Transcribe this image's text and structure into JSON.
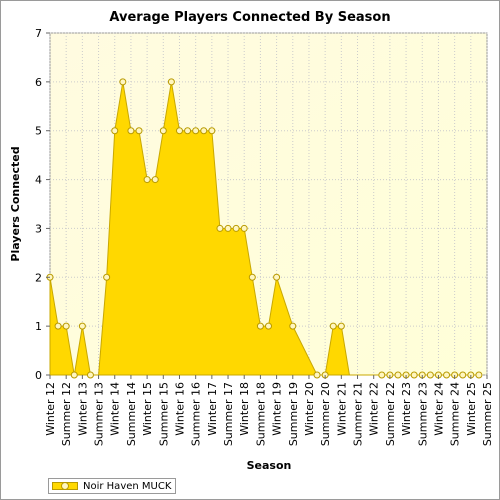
{
  "chart_data": {
    "type": "area",
    "title": "Average Players Connected By Season",
    "xlabel": "Season",
    "ylabel": "Players Connected",
    "ylim": [
      0,
      7
    ],
    "yticks": [
      0,
      1,
      2,
      3,
      4,
      5,
      6,
      7
    ],
    "grid": true,
    "legend_position": "bottom-left",
    "tick_labels": [
      "Winter 12",
      "Summer 12",
      "Winter 13",
      "Summer 13",
      "Winter 14",
      "Summer 14",
      "Winter 15",
      "Summer 15",
      "Winter 16",
      "Summer 16",
      "Winter 17",
      "Summer 17",
      "Winter 18",
      "Summer 18",
      "Winter 19",
      "Summer 19",
      "Winter 20",
      "Summer 20",
      "Winter 21",
      "Summer 21",
      "Winter 22",
      "Summer 22",
      "Winter 23",
      "Summer 23",
      "Winter 24",
      "Summer 24",
      "Winter 25",
      "Summer 25"
    ],
    "x_range": [
      0,
      54
    ],
    "series": [
      {
        "name": "Noir Haven MUCK",
        "color": "#ffd800",
        "points": [
          {
            "x": 0,
            "y": 2,
            "marker": true
          },
          {
            "x": 1,
            "y": 1,
            "marker": true
          },
          {
            "x": 2,
            "y": 1,
            "marker": true
          },
          {
            "x": 3,
            "y": 0,
            "marker": true
          },
          {
            "x": 4,
            "y": 1,
            "marker": true
          },
          {
            "x": 5,
            "y": 0,
            "marker": true
          },
          {
            "x": 6,
            "y": 0,
            "marker": false
          },
          {
            "x": 7,
            "y": 2,
            "marker": true
          },
          {
            "x": 8,
            "y": 5,
            "marker": true
          },
          {
            "x": 9,
            "y": 6,
            "marker": true
          },
          {
            "x": 10,
            "y": 5,
            "marker": true
          },
          {
            "x": 11,
            "y": 5,
            "marker": true
          },
          {
            "x": 12,
            "y": 4,
            "marker": true
          },
          {
            "x": 13,
            "y": 4,
            "marker": true
          },
          {
            "x": 14,
            "y": 5,
            "marker": true
          },
          {
            "x": 15,
            "y": 6,
            "marker": true
          },
          {
            "x": 16,
            "y": 5,
            "marker": true
          },
          {
            "x": 17,
            "y": 5,
            "marker": true
          },
          {
            "x": 18,
            "y": 5,
            "marker": true
          },
          {
            "x": 19,
            "y": 5,
            "marker": true
          },
          {
            "x": 20,
            "y": 5,
            "marker": true
          },
          {
            "x": 21,
            "y": 3,
            "marker": true
          },
          {
            "x": 22,
            "y": 3,
            "marker": true
          },
          {
            "x": 23,
            "y": 3,
            "marker": true
          },
          {
            "x": 24,
            "y": 3,
            "marker": true
          },
          {
            "x": 25,
            "y": 2,
            "marker": true
          },
          {
            "x": 26,
            "y": 1,
            "marker": true
          },
          {
            "x": 27,
            "y": 1,
            "marker": true
          },
          {
            "x": 28,
            "y": 2,
            "marker": true
          },
          {
            "x": 30,
            "y": 1,
            "marker": true
          },
          {
            "x": 33,
            "y": 0,
            "marker": true
          },
          {
            "x": 34,
            "y": 0,
            "marker": true
          },
          {
            "x": 35,
            "y": 1,
            "marker": true
          },
          {
            "x": 36,
            "y": 1,
            "marker": true
          },
          {
            "x": 37,
            "y": 0,
            "marker": false
          },
          {
            "x": 41,
            "y": 0,
            "marker": true
          },
          {
            "x": 42,
            "y": 0,
            "marker": true
          },
          {
            "x": 43,
            "y": 0,
            "marker": true
          },
          {
            "x": 44,
            "y": 0,
            "marker": true
          },
          {
            "x": 45,
            "y": 0,
            "marker": true
          },
          {
            "x": 46,
            "y": 0,
            "marker": true
          },
          {
            "x": 47,
            "y": 0,
            "marker": true
          },
          {
            "x": 48,
            "y": 0,
            "marker": true
          },
          {
            "x": 49,
            "y": 0,
            "marker": true
          },
          {
            "x": 50,
            "y": 0,
            "marker": true
          },
          {
            "x": 51,
            "y": 0,
            "marker": true
          },
          {
            "x": 52,
            "y": 0,
            "marker": true
          },
          {
            "x": 53,
            "y": 0,
            "marker": true
          }
        ]
      }
    ]
  },
  "colors": {
    "plot_background": "#fffde0",
    "area_fill": "#ffd800",
    "area_stroke": "#c9a800",
    "marker_fill": "#fff6c0",
    "marker_stroke": "#b89a00"
  }
}
